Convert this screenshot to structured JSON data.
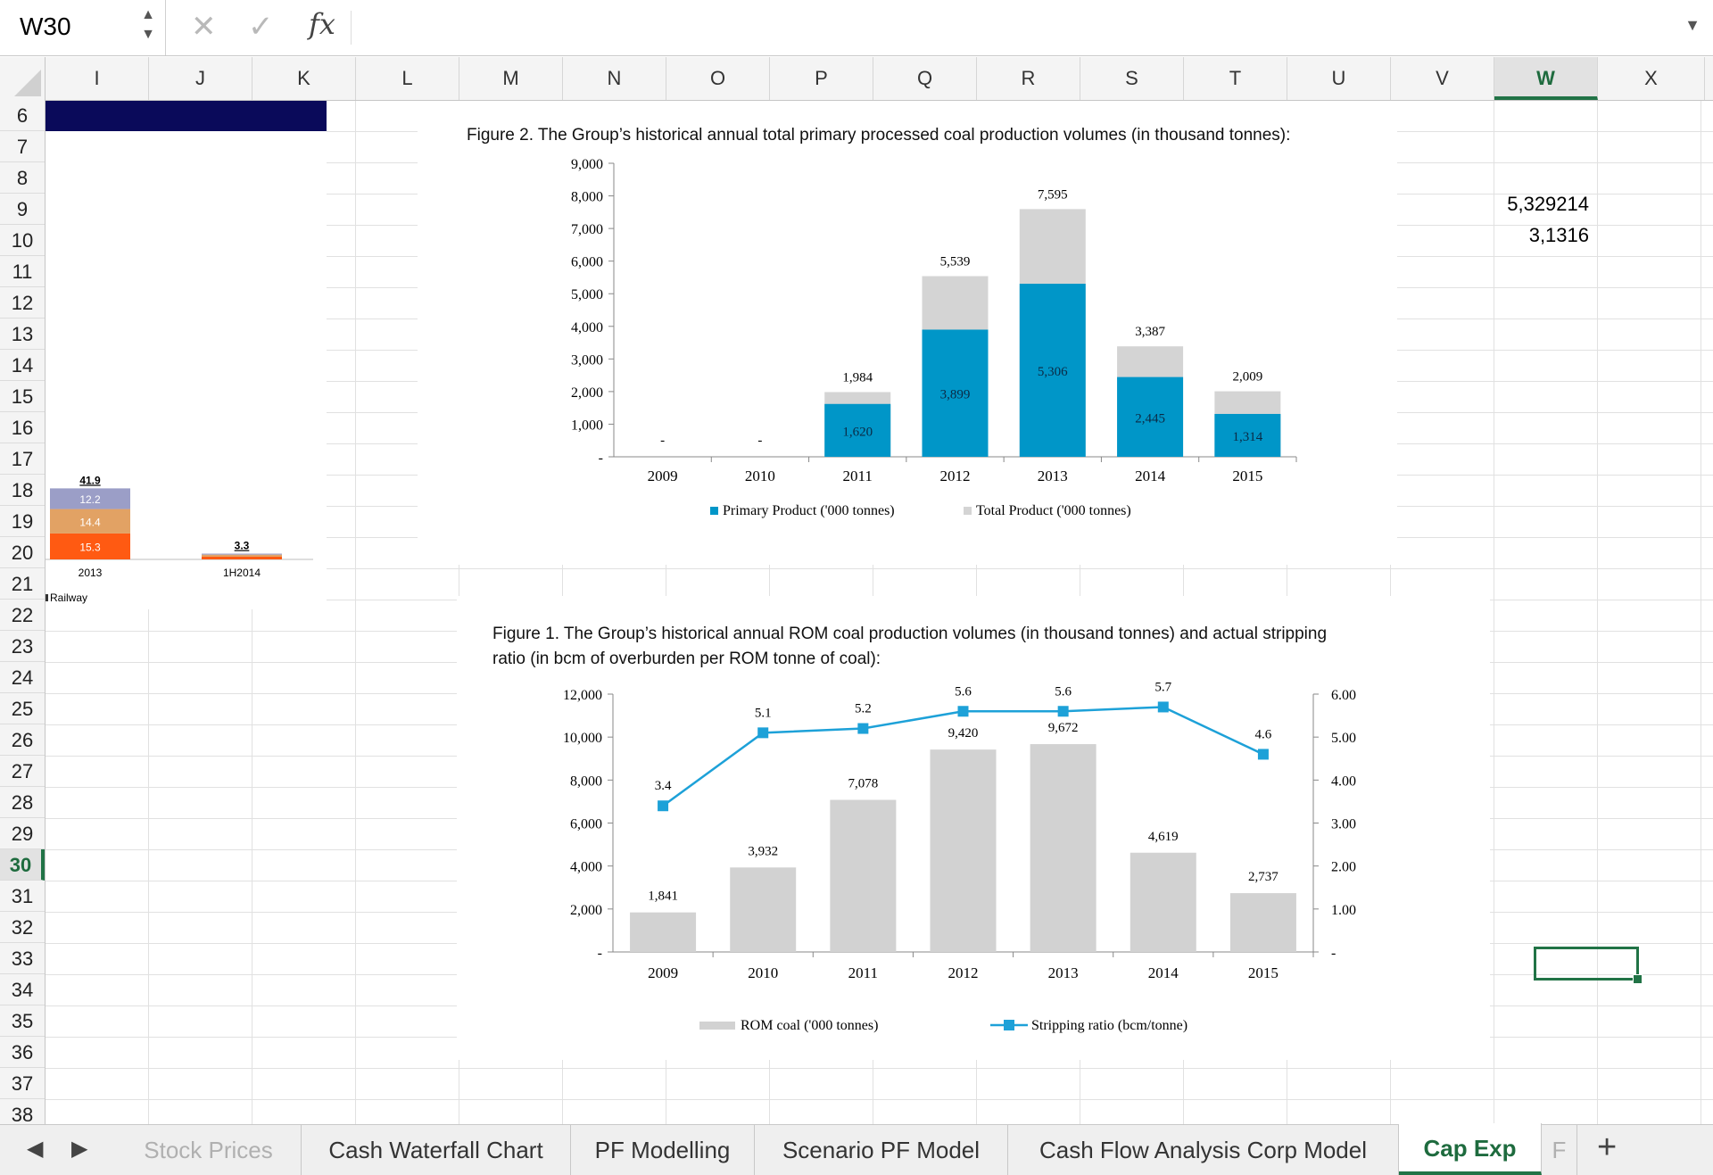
{
  "formula_bar": {
    "name_box": "W30",
    "cancel_icon": "✕",
    "enter_icon": "✓",
    "fx_label": "fx",
    "formula": ""
  },
  "columns": [
    "I",
    "J",
    "K",
    "L",
    "M",
    "N",
    "O",
    "P",
    "Q",
    "R",
    "S",
    "T",
    "U",
    "V",
    "W",
    "X"
  ],
  "selected_column": "W",
  "rows": [
    "6",
    "7",
    "8",
    "9",
    "10",
    "11",
    "12",
    "13",
    "14",
    "15",
    "16",
    "17",
    "18",
    "19",
    "20",
    "21",
    "22",
    "23",
    "24",
    "25",
    "26",
    "27",
    "28",
    "29",
    "30",
    "31",
    "32",
    "33",
    "34",
    "35",
    "36",
    "37",
    "38"
  ],
  "selected_row": "30",
  "cells": {
    "W9": "5,329214",
    "W10": "3,1316"
  },
  "colors": {
    "excel_green": "#217346",
    "navy_fill": "#0a0a5a",
    "primary_bar": "#0096c8",
    "total_bar": "#d4d4d4",
    "rom_bar": "#d2d2d2",
    "stripping_line": "#1da1d8",
    "seg_purple": "#9b9ec7",
    "seg_tan": "#e2a264",
    "seg_orange": "#ff5a12"
  },
  "chart_data": [
    {
      "type": "bar",
      "stacked": true,
      "categories": [
        "2013",
        "1H2014"
      ],
      "series": [
        {
          "values": [
            15.3,
            1.6
          ],
          "labels": [
            "15.3",
            ""
          ]
        },
        {
          "values": [
            14.4,
            1.2
          ],
          "labels": [
            "14.4",
            ""
          ]
        },
        {
          "values": [
            12.2,
            0.6
          ],
          "labels": [
            "12.2",
            ""
          ]
        }
      ],
      "totals": [
        "41.9",
        "3.3"
      ],
      "legend_text": "Railway",
      "ylim": [
        0,
        48
      ]
    },
    {
      "type": "bar",
      "overlapping": true,
      "title": "Figure 2. The Group’s historical annual total primary processed coal production volumes (in thousand tonnes):",
      "categories": [
        "2009",
        "2010",
        "2011",
        "2012",
        "2013",
        "2014",
        "2015"
      ],
      "series": [
        {
          "name": "Primary Product ('000 tonnes)",
          "values": [
            0,
            0,
            1620,
            3899,
            5306,
            2445,
            1314
          ],
          "labels": [
            "-",
            "-",
            "1,620",
            "3,899",
            "5,306",
            "2,445",
            "1,314"
          ]
        },
        {
          "name": "Total Product ('000 tonnes)",
          "values": [
            0,
            0,
            1984,
            5539,
            7595,
            3387,
            2009
          ],
          "labels": [
            "",
            "",
            "1,984",
            "5,539",
            "7,595",
            "3,387",
            "2,009"
          ]
        }
      ],
      "yticks": [
        "-",
        "1,000",
        "2,000",
        "3,000",
        "4,000",
        "5,000",
        "6,000",
        "7,000",
        "8,000",
        "9,000"
      ],
      "ylim": [
        0,
        9000
      ]
    },
    {
      "type": "bar",
      "secondary_axis_line": true,
      "title_lines": [
        "Figure 1. The Group’s historical annual ROM coal production volumes (in thousand tonnes) and actual stripping",
        "ratio (in bcm of overburden per ROM tonne of coal):"
      ],
      "categories": [
        "2009",
        "2010",
        "2011",
        "2012",
        "2013",
        "2014",
        "2015"
      ],
      "series": [
        {
          "name": "ROM coal ('000 tonnes)",
          "type": "bar",
          "values": [
            1841,
            3932,
            7078,
            9420,
            9672,
            4619,
            2737
          ],
          "labels": [
            "1,841",
            "3,932",
            "7,078",
            "9,420",
            "9,672",
            "4,619",
            "2,737"
          ]
        },
        {
          "name": "Stripping ratio (bcm/tonne)",
          "type": "line",
          "values": [
            3.4,
            5.1,
            5.2,
            5.6,
            5.6,
            5.7,
            4.6
          ],
          "labels": [
            "3.4",
            "5.1",
            "5.2",
            "5.6",
            "5.6",
            "5.7",
            "4.6"
          ]
        }
      ],
      "yticks_left": [
        "-",
        "2,000",
        "4,000",
        "6,000",
        "8,000",
        "10,000",
        "12,000"
      ],
      "yticks_right": [
        "-",
        "1.00",
        "2.00",
        "3.00",
        "4.00",
        "5.00",
        "6.00"
      ],
      "ylim_left": [
        0,
        12000
      ],
      "ylim_right": [
        0,
        6
      ]
    }
  ],
  "tabs": {
    "prev_icon": "◀",
    "next_icon": "▶",
    "items": [
      {
        "label": "Stock Prices"
      },
      {
        "label": "Cash Waterfall Chart"
      },
      {
        "label": "PF Modelling"
      },
      {
        "label": "Scenario PF Model"
      },
      {
        "label": "Cash Flow Analysis Corp Model"
      },
      {
        "label": "Cap Exp"
      },
      {
        "label": "F"
      }
    ],
    "active": "Cap Exp",
    "add_icon": "+"
  }
}
